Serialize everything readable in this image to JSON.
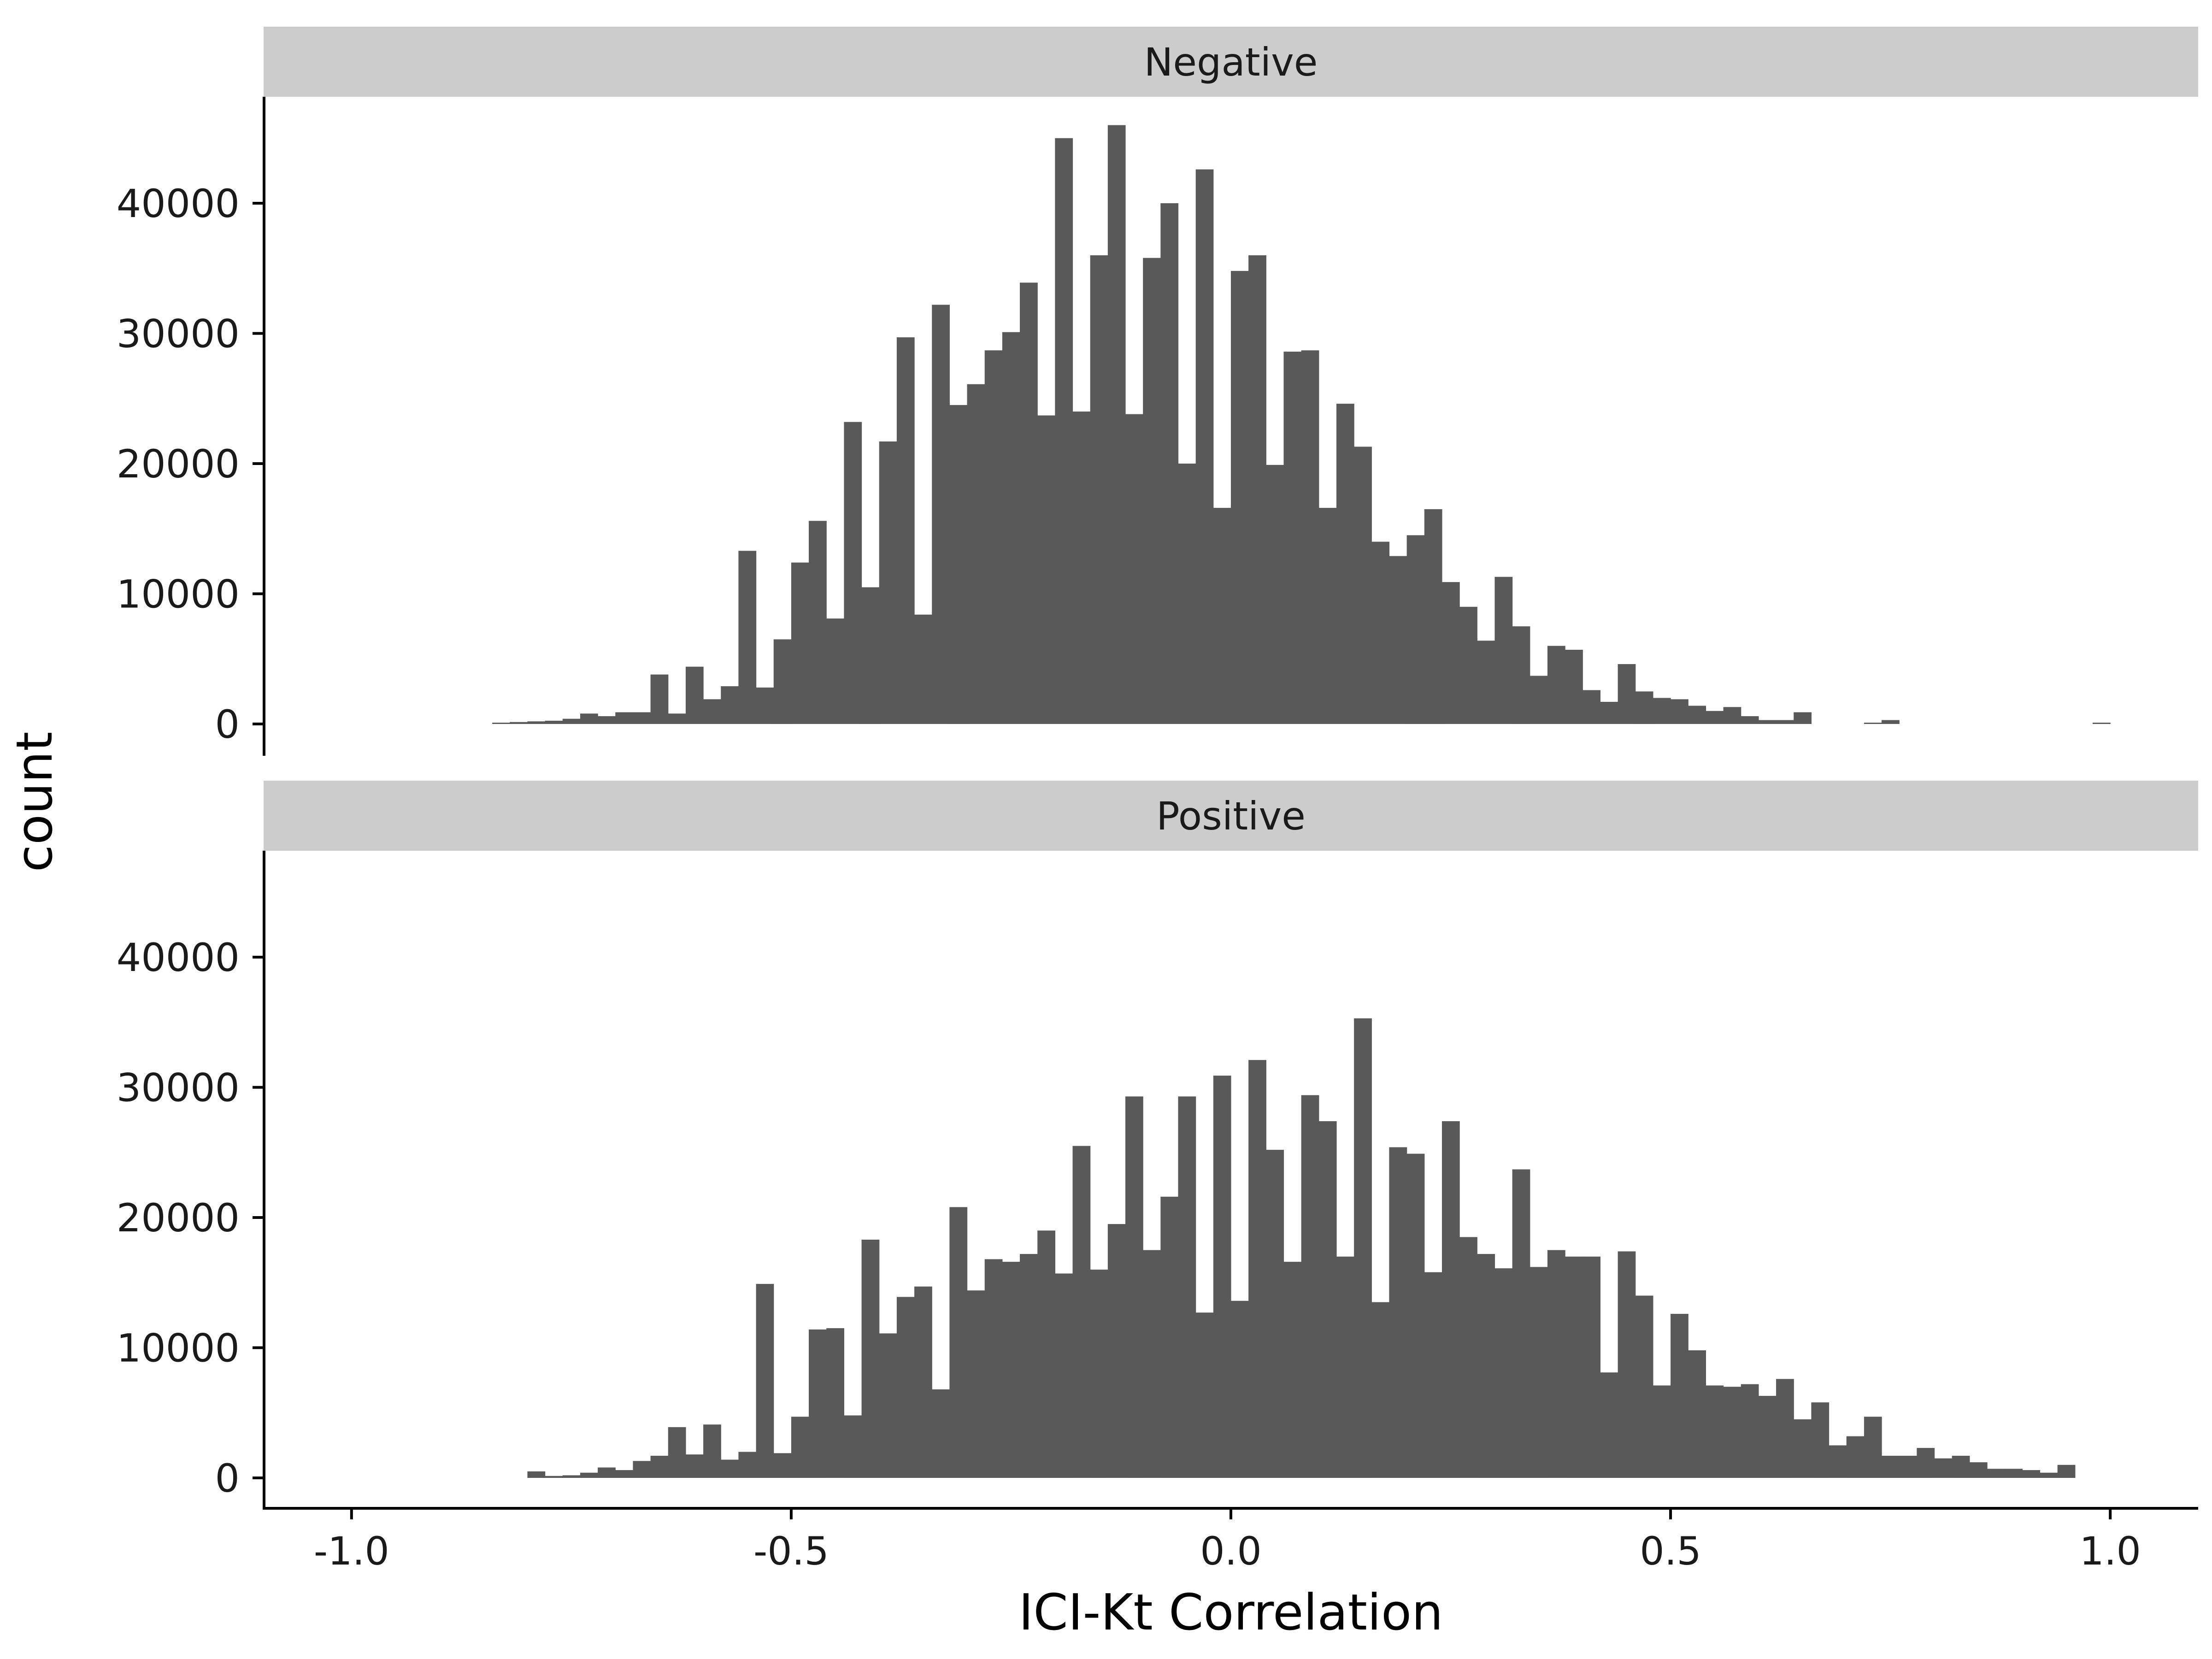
{
  "chart_data": {
    "type": "bar",
    "subtype": "histogram",
    "xlabel": "ICI-Kt Correlation",
    "ylabel": "count",
    "xlim": [
      -1.1,
      1.1
    ],
    "ylim": [
      0,
      48000
    ],
    "x_ticks": [
      -1.0,
      -0.5,
      0.0,
      0.5,
      1.0
    ],
    "x_tick_labels": [
      "-1.0",
      "-0.5",
      "0.0",
      "0.5",
      "1.0"
    ],
    "y_ticks": [
      0,
      10000,
      20000,
      30000,
      40000
    ],
    "y_tick_labels": [
      "0",
      "10000",
      "20000",
      "30000",
      "40000"
    ],
    "bin_width": 0.02,
    "bar_color": "#595959",
    "strip_color": "#cccccc",
    "grid": false,
    "legend": "none",
    "panels": [
      {
        "name": "Negative",
        "bin_start": -0.84,
        "values": [
          100,
          150,
          200,
          250,
          400,
          800,
          600,
          900,
          900,
          3800,
          800,
          4400,
          1900,
          2900,
          13300,
          2800,
          6500,
          12400,
          15600,
          8100,
          23200,
          10500,
          21700,
          29700,
          8400,
          32200,
          24500,
          26100,
          28700,
          30100,
          33900,
          23700,
          45000,
          24000,
          36000,
          46000,
          23800,
          35800,
          40000,
          20000,
          42600,
          16600,
          34800,
          36000,
          19900,
          28600,
          28700,
          16600,
          24600,
          21300,
          14000,
          12900,
          14500,
          16500,
          10900,
          9000,
          6400,
          11300,
          7500,
          3700,
          6000,
          5700,
          2600,
          1700,
          4600,
          2500,
          2000,
          1900,
          1400,
          1000,
          1300,
          600,
          300,
          300,
          900,
          0,
          0,
          0,
          100,
          300,
          0,
          0,
          0,
          0,
          0,
          0,
          0,
          0,
          0,
          0,
          0,
          100
        ]
      },
      {
        "name": "Positive",
        "bin_start": -0.8,
        "values": [
          500,
          150,
          200,
          400,
          800,
          600,
          1300,
          1700,
          3900,
          1800,
          4100,
          1400,
          2000,
          14900,
          1900,
          4700,
          11400,
          11500,
          4800,
          18300,
          11100,
          13900,
          14700,
          6800,
          20800,
          14400,
          16800,
          16600,
          17200,
          19000,
          15700,
          25500,
          16000,
          19500,
          29300,
          17500,
          21600,
          29300,
          12700,
          30900,
          13600,
          32100,
          25200,
          16600,
          29400,
          27400,
          17000,
          35300,
          13500,
          25400,
          24900,
          15800,
          27400,
          18500,
          17200,
          16100,
          23700,
          16200,
          17500,
          17000,
          17000,
          8100,
          17400,
          14000,
          7100,
          12600,
          9800,
          7100,
          7000,
          7200,
          6300,
          7600,
          4500,
          5800,
          2500,
          3200,
          4700,
          1700,
          1700,
          2300,
          1500,
          1700,
          1200,
          700,
          700,
          600,
          400,
          1000
        ]
      }
    ]
  }
}
